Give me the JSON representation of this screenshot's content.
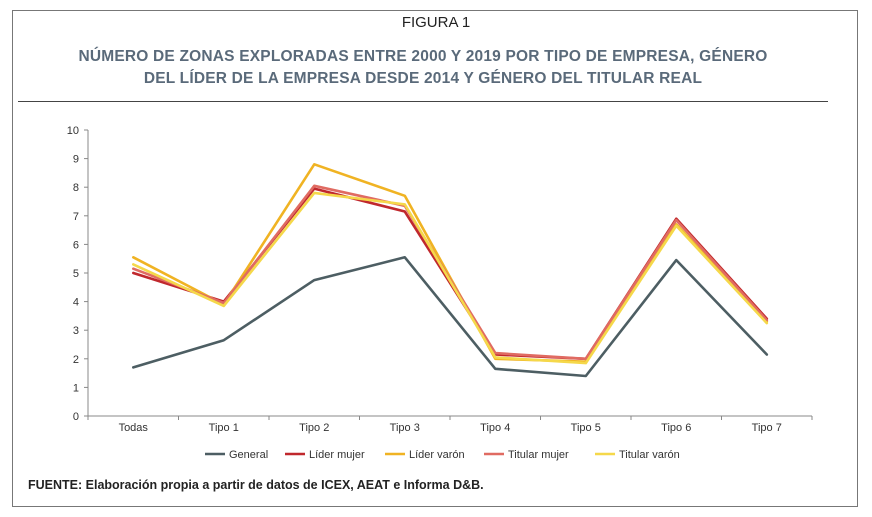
{
  "figure": {
    "label": "FIGURA 1",
    "title_line1": "NÚMERO DE ZONAS EXPLORADAS ENTRE 2000 Y 2019 POR TIPO DE EMPRESA, GÉNERO",
    "title_line2": "DEL LÍDER DE LA EMPRESA DESDE 2014 Y GÉNERO DEL TITULAR REAL",
    "source": "FUENTE: Elaboración propia a partir de datos de ICEX, AEAT e Informa D&B."
  },
  "chart_data": {
    "type": "line",
    "categories": [
      "Todas",
      "Tipo 1",
      "Tipo 2",
      "Tipo 3",
      "Tipo 4",
      "Tipo 5",
      "Tipo 6",
      "Tipo 7"
    ],
    "ylim": [
      0,
      10
    ],
    "yticks": [
      0,
      1,
      2,
      3,
      4,
      5,
      6,
      7,
      8,
      9,
      10
    ],
    "grid": false,
    "legend_position": "bottom",
    "series": [
      {
        "name": "General",
        "color": "#4d5e63",
        "values": [
          1.7,
          2.65,
          4.75,
          5.55,
          1.65,
          1.4,
          5.45,
          2.15
        ]
      },
      {
        "name": "Líder mujer",
        "color": "#c0282d",
        "values": [
          5.0,
          4.0,
          7.95,
          7.15,
          2.15,
          2.0,
          6.9,
          3.4
        ]
      },
      {
        "name": "Líder varón",
        "color": "#f0b323",
        "values": [
          5.55,
          3.9,
          8.8,
          7.7,
          2.0,
          1.9,
          6.7,
          3.3
        ]
      },
      {
        "name": "Titular mujer",
        "color": "#e06b62",
        "values": [
          5.15,
          3.95,
          8.05,
          7.35,
          2.2,
          2.0,
          6.85,
          3.35
        ]
      },
      {
        "name": "Titular varón",
        "color": "#f5d84a",
        "values": [
          5.3,
          3.85,
          7.8,
          7.4,
          2.05,
          1.85,
          6.65,
          3.25
        ]
      }
    ]
  }
}
